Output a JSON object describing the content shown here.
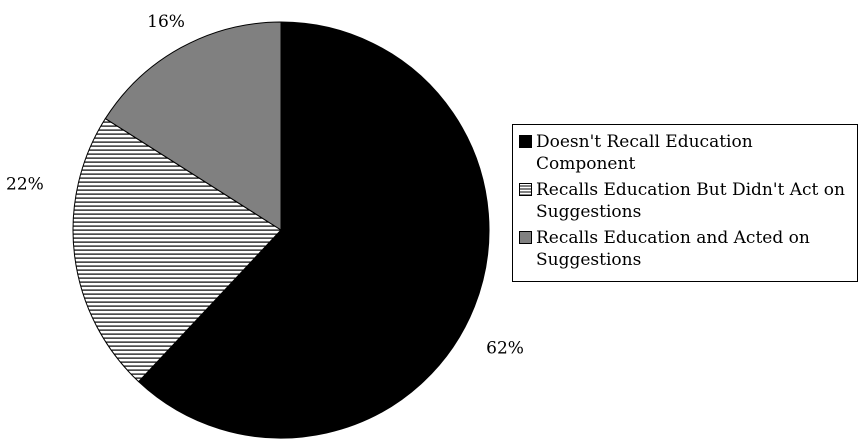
{
  "chart_data": {
    "type": "pie",
    "slices": [
      {
        "label": "Doesn't Recall Education Component",
        "value": 62,
        "display": "62%",
        "color": "#000000",
        "fill": "solid"
      },
      {
        "label": "Recalls Education But Didn't Act on Suggestions",
        "value": 22,
        "display": "22%",
        "color": "#000000",
        "fill": "horizontal-stripes"
      },
      {
        "label": "Recalls Education and Acted on Suggestions",
        "value": 16,
        "display": "16%",
        "color": "#808080",
        "fill": "solid"
      }
    ],
    "start_angle": "12 o'clock",
    "direction": "clockwise",
    "legend_position": "right"
  }
}
